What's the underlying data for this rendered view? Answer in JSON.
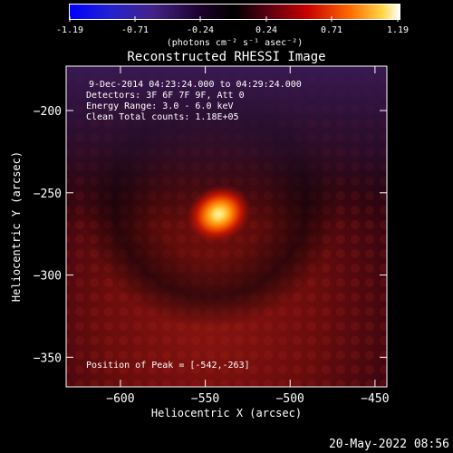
{
  "colorbar": {
    "ticks": [
      "-1.19",
      "-0.71",
      "-0.24",
      "0.24",
      "0.71",
      "1.19"
    ],
    "unit_label": "(photons cm⁻² s⁻¹ asec⁻²)"
  },
  "chart_data": {
    "type": "heatmap",
    "title": "Reconstructed RHESSI Image",
    "xlabel": "Heliocentric X (arcsec)",
    "ylabel": "Heliocentric Y (arcsec)",
    "xlim": [
      -632,
      -443
    ],
    "ylim": [
      -368,
      -173
    ],
    "xticks": [
      -600,
      -550,
      -500,
      -450
    ],
    "yticks": [
      -200,
      -250,
      -300,
      -350
    ],
    "xtick_labels": [
      "−600",
      "−550",
      "−500",
      "−450"
    ],
    "ytick_labels": [
      "−200",
      "−250",
      "−300",
      "−350"
    ],
    "color_range": [
      -1.19,
      1.19
    ],
    "peak": {
      "x": -542,
      "y": -263
    },
    "annotations": [
      "9-Dec-2014 04:23:24.000 to 04:29:24.000",
      "Detectors: 3F 6F 7F 9F, Att 0",
      "Energy Range: 3.0 - 6.0 keV",
      "Clean    Total counts: 1.18E+05",
      "Position of Peak = [-542,-263]"
    ]
  },
  "timestamp": "20-May-2022 08:56"
}
